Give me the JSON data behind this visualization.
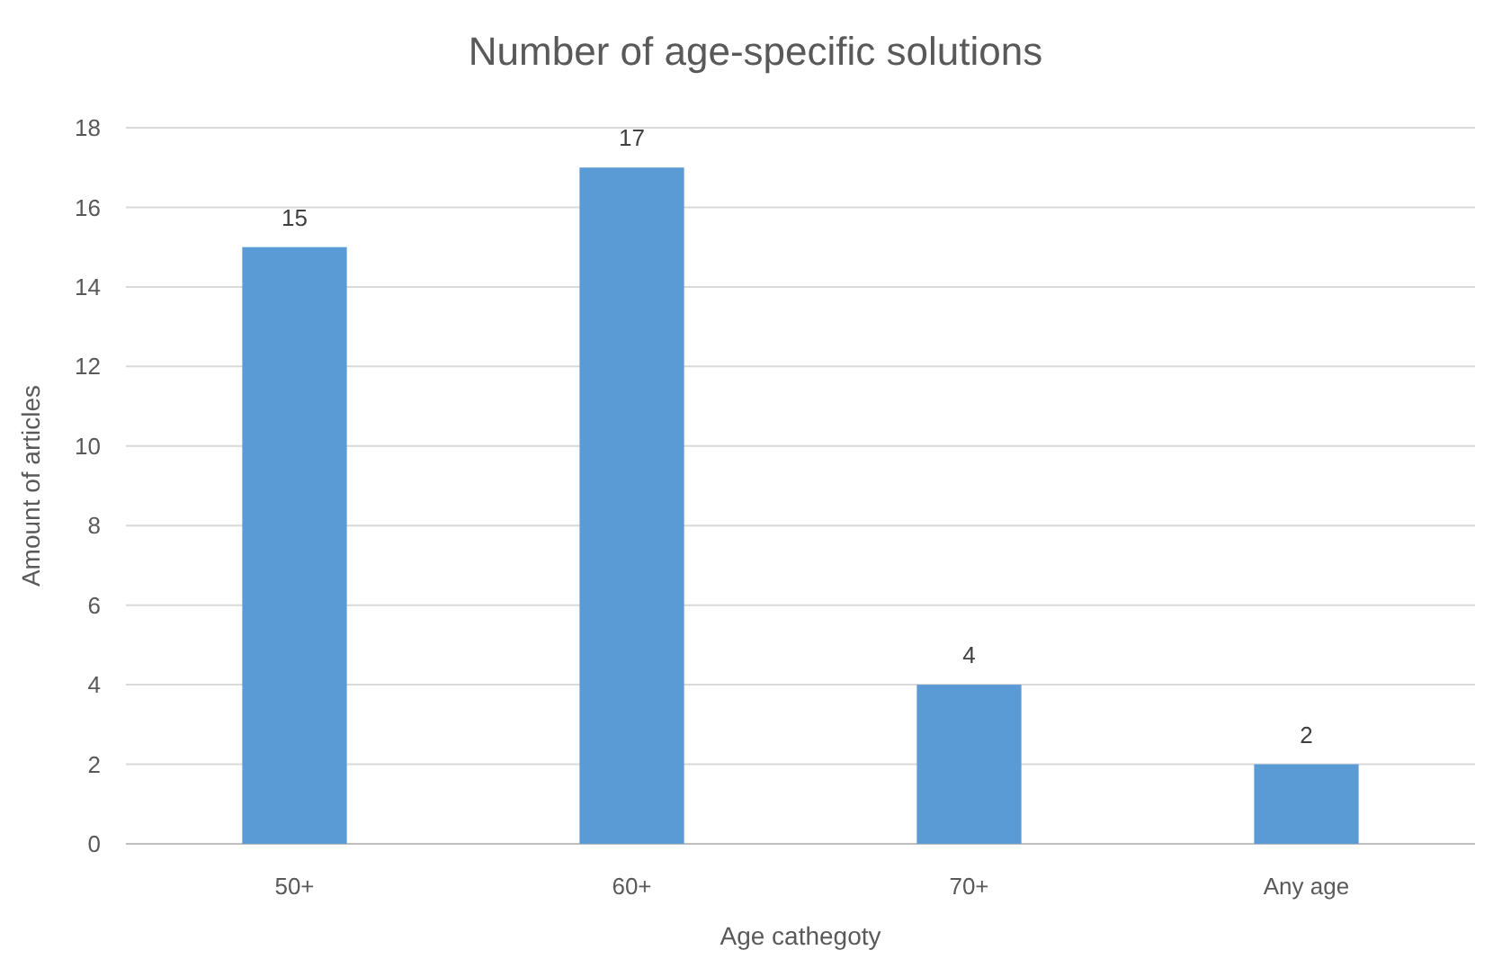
{
  "chart_data": {
    "type": "bar",
    "title": "Number of age-specific solutions",
    "xlabel": "Age cathegoty",
    "ylabel": "Amount of articles",
    "categories": [
      "50+",
      "60+",
      "70+",
      "Any age"
    ],
    "values": [
      15,
      17,
      4,
      2
    ],
    "color": "#5b9bd5",
    "ylim": [
      0,
      18
    ],
    "yticks": [
      0,
      2,
      4,
      6,
      8,
      10,
      12,
      14,
      16,
      18
    ],
    "grid": "y",
    "data_labels": true
  }
}
